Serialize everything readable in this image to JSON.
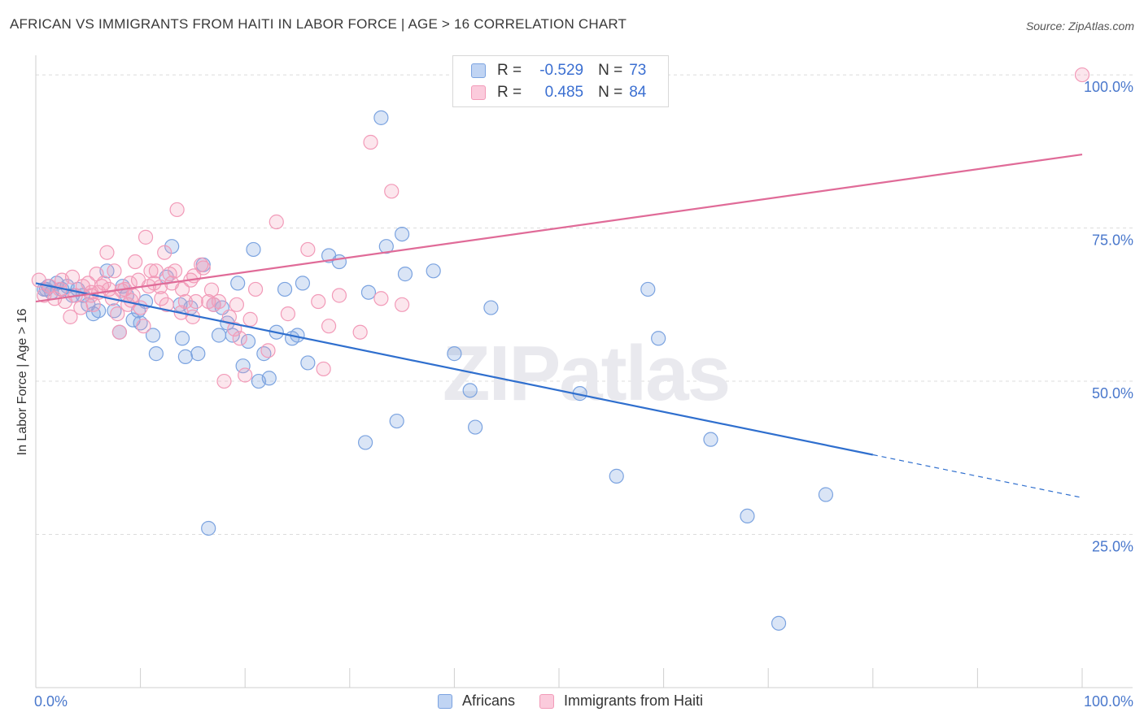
{
  "title": "AFRICAN VS IMMIGRANTS FROM HAITI IN LABOR FORCE | AGE > 16 CORRELATION CHART",
  "source": "Source: ZipAtlas.com",
  "watermark": "ZIPatlas",
  "legend": {
    "r_label": "R =",
    "n_label": "N =",
    "rows": [
      {
        "r": "-0.529",
        "n": "73"
      },
      {
        "r": "0.485",
        "n": "84"
      }
    ]
  },
  "chart_data": {
    "type": "scatter",
    "title": "AFRICAN VS IMMIGRANTS FROM HAITI IN LABOR FORCE | AGE > 16 CORRELATION CHART",
    "xlabel": "",
    "ylabel": "In Labor Force | Age > 16",
    "xlim": [
      0,
      100
    ],
    "ylim": [
      0,
      102
    ],
    "x_tick_labels": [
      "0.0%",
      "100.0%"
    ],
    "y_ticks": [
      25,
      50,
      75,
      100
    ],
    "y_tick_labels": [
      "25.0%",
      "50.0%",
      "75.0%",
      "100.0%"
    ],
    "grid": true,
    "legend_position": "bottom-center",
    "colors": {
      "Africans": "#7ba3e0",
      "Immigrants from Haiti": "#f29ab8",
      "Africans_line": "#2f6fce",
      "Haiti_line": "#e06b98"
    },
    "series": [
      {
        "name": "Africans",
        "trend": {
          "x": [
            0,
            80,
            100
          ],
          "y": [
            66,
            38,
            31
          ],
          "solid_until": 80
        },
        "points": [
          [
            0.8,
            65
          ],
          [
            1.2,
            65.5
          ],
          [
            1.5,
            64.5
          ],
          [
            2,
            66
          ],
          [
            2.5,
            65
          ],
          [
            3,
            65.5
          ],
          [
            3.5,
            64
          ],
          [
            4,
            65
          ],
          [
            4.5,
            64
          ],
          [
            5,
            62.5
          ],
          [
            5.5,
            61
          ],
          [
            6,
            61.5
          ],
          [
            6.8,
            68
          ],
          [
            7.5,
            61.5
          ],
          [
            8,
            58
          ],
          [
            8.3,
            65.5
          ],
          [
            8.7,
            64
          ],
          [
            9.3,
            60
          ],
          [
            9.8,
            61.5
          ],
          [
            10,
            59.5
          ],
          [
            10.5,
            63
          ],
          [
            11.2,
            57.5
          ],
          [
            11.5,
            54.5
          ],
          [
            12.5,
            67
          ],
          [
            13,
            72
          ],
          [
            13.8,
            62.5
          ],
          [
            14,
            57
          ],
          [
            14.3,
            54
          ],
          [
            14.8,
            62
          ],
          [
            15.5,
            54.5
          ],
          [
            16,
            69
          ],
          [
            16.5,
            26
          ],
          [
            17,
            62.5
          ],
          [
            17.5,
            57.5
          ],
          [
            17.8,
            62
          ],
          [
            18.3,
            59.5
          ],
          [
            18.8,
            57.5
          ],
          [
            19.3,
            66
          ],
          [
            19.8,
            52.5
          ],
          [
            20.3,
            56.5
          ],
          [
            20.8,
            71.5
          ],
          [
            21.3,
            50
          ],
          [
            21.8,
            54.5
          ],
          [
            22.3,
            50.5
          ],
          [
            23,
            58
          ],
          [
            23.8,
            65
          ],
          [
            24.5,
            57
          ],
          [
            25,
            57.5
          ],
          [
            25.5,
            66
          ],
          [
            26,
            53
          ],
          [
            28,
            70.5
          ],
          [
            29,
            69.5
          ],
          [
            31.5,
            40
          ],
          [
            31.8,
            64.5
          ],
          [
            33,
            93
          ],
          [
            33.5,
            72
          ],
          [
            34.5,
            43.5
          ],
          [
            35,
            74
          ],
          [
            35.3,
            67.5
          ],
          [
            38,
            68
          ],
          [
            40,
            54.5
          ],
          [
            41.5,
            48.5
          ],
          [
            42,
            42.5
          ],
          [
            43.5,
            62
          ],
          [
            52,
            48
          ],
          [
            55.5,
            34.5
          ],
          [
            58.5,
            65
          ],
          [
            59.5,
            57
          ],
          [
            64.5,
            40.5
          ],
          [
            68,
            28
          ],
          [
            71,
            10.5
          ],
          [
            75.5,
            31.5
          ],
          [
            1,
            65
          ]
        ]
      },
      {
        "name": "Immigrants from Haiti",
        "trend": {
          "x": [
            0,
            100
          ],
          "y": [
            63,
            87
          ]
        },
        "points": [
          [
            0.3,
            66.5
          ],
          [
            0.8,
            64
          ],
          [
            1.3,
            65.5
          ],
          [
            1.8,
            63.5
          ],
          [
            2.3,
            65
          ],
          [
            2.5,
            66.5
          ],
          [
            2.8,
            63
          ],
          [
            3.3,
            60.5
          ],
          [
            3.5,
            67
          ],
          [
            3.8,
            64
          ],
          [
            4.3,
            62
          ],
          [
            4.5,
            65.5
          ],
          [
            5,
            66
          ],
          [
            5.3,
            64
          ],
          [
            5.5,
            62.5
          ],
          [
            5.8,
            67.5
          ],
          [
            6,
            64.5
          ],
          [
            6.3,
            65.5
          ],
          [
            6.8,
            71
          ],
          [
            7,
            65
          ],
          [
            7.3,
            63.5
          ],
          [
            7.5,
            68
          ],
          [
            7.8,
            61
          ],
          [
            8,
            58
          ],
          [
            8.5,
            65
          ],
          [
            8.8,
            62.5
          ],
          [
            9,
            66
          ],
          [
            9.3,
            64
          ],
          [
            9.5,
            69.5
          ],
          [
            9.8,
            66.5
          ],
          [
            10,
            62
          ],
          [
            10.3,
            59
          ],
          [
            10.5,
            73.5
          ],
          [
            10.8,
            65.5
          ],
          [
            11,
            68
          ],
          [
            11.3,
            66
          ],
          [
            11.5,
            68
          ],
          [
            12,
            63.5
          ],
          [
            12.3,
            71
          ],
          [
            12.5,
            62.5
          ],
          [
            12.8,
            67.5
          ],
          [
            13,
            66
          ],
          [
            13.3,
            68
          ],
          [
            13.5,
            78
          ],
          [
            14,
            65
          ],
          [
            14.3,
            63
          ],
          [
            14.8,
            66.5
          ],
          [
            15,
            60.5
          ],
          [
            15.3,
            63
          ],
          [
            15.8,
            69
          ],
          [
            16,
            68.5
          ],
          [
            16.5,
            63
          ],
          [
            17,
            62.5
          ],
          [
            17.5,
            63
          ],
          [
            18,
            50
          ],
          [
            18.5,
            60.5
          ],
          [
            19,
            58.5
          ],
          [
            19.5,
            57
          ],
          [
            20,
            51
          ],
          [
            21,
            65
          ],
          [
            23,
            76
          ],
          [
            26,
            71.5
          ],
          [
            27,
            63
          ],
          [
            28,
            59
          ],
          [
            29,
            64
          ],
          [
            31,
            58
          ],
          [
            32,
            89
          ],
          [
            33,
            63.5
          ],
          [
            34,
            81
          ],
          [
            35,
            62.5
          ],
          [
            5.3,
            64.5
          ],
          [
            6.5,
            66
          ],
          [
            8.2,
            64.8
          ],
          [
            9.1,
            63.2
          ],
          [
            11.9,
            65.4
          ],
          [
            13.9,
            61.2
          ],
          [
            15.1,
            67.2
          ],
          [
            16.8,
            64.9
          ],
          [
            19.2,
            62.5
          ],
          [
            20.5,
            60.1
          ],
          [
            22.2,
            55
          ],
          [
            24.1,
            61
          ],
          [
            27.5,
            52
          ],
          [
            100,
            100
          ]
        ]
      }
    ]
  },
  "bottom_legend": [
    {
      "label": "Africans"
    },
    {
      "label": "Immigrants from Haiti"
    }
  ]
}
